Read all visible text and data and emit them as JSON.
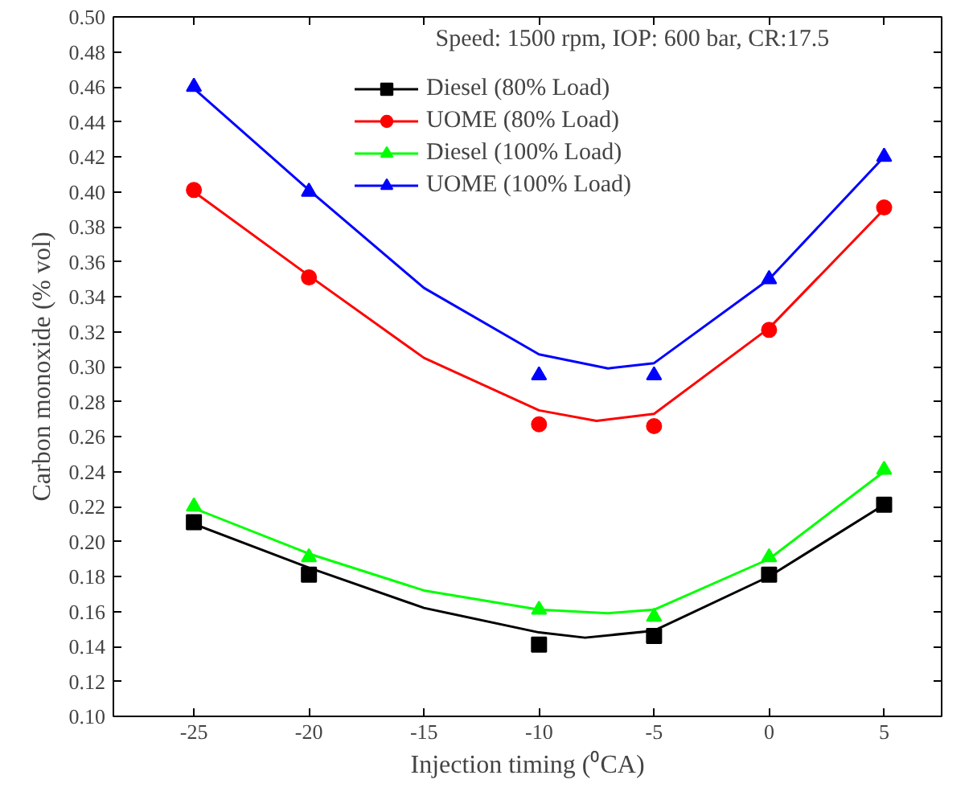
{
  "chart_data": {
    "type": "scatter",
    "xlabel": "Injection timing (⁰CA)",
    "ylabel": "Carbon monoxide (% vol)",
    "annotations": [
      "Speed: 1500 rpm, IOP: 600 bar, CR:17.5"
    ],
    "x": [
      -25,
      -20,
      -10,
      -5,
      0,
      5
    ],
    "series": [
      {
        "name": "Diesel (80% Load)",
        "color": "#000000",
        "marker": "square",
        "values": [
          0.211,
          0.181,
          0.141,
          0.146,
          0.181,
          0.221
        ]
      },
      {
        "name": "UOME (80% Load)",
        "color": "#ff0000",
        "marker": "circle",
        "values": [
          0.401,
          0.351,
          0.267,
          0.266,
          0.321,
          0.391
        ]
      },
      {
        "name": "Diesel (100% Load)",
        "color": "#00ff00",
        "marker": "triangle",
        "values": [
          0.22,
          0.191,
          0.161,
          0.157,
          0.191,
          0.241
        ]
      },
      {
        "name": "UOME (100% Load)",
        "color": "#0000ff",
        "marker": "triangle",
        "values": [
          0.46,
          0.4,
          0.295,
          0.295,
          0.35,
          0.42
        ]
      },
      {
        "type": "line",
        "color": "#000000",
        "x": [
          -25,
          -20,
          -15,
          -10,
          -8,
          -5,
          0,
          5
        ],
        "values": [
          0.21,
          0.185,
          0.162,
          0.148,
          0.145,
          0.149,
          0.18,
          0.221
        ]
      },
      {
        "type": "line",
        "color": "#ff0000",
        "x": [
          -25,
          -20,
          -15,
          -10,
          -7.5,
          -5,
          0,
          5
        ],
        "values": [
          0.4,
          0.352,
          0.305,
          0.275,
          0.269,
          0.273,
          0.322,
          0.39
        ]
      },
      {
        "type": "line",
        "color": "#00ff00",
        "x": [
          -25,
          -20,
          -15,
          -10,
          -7,
          -5,
          0,
          5
        ],
        "values": [
          0.219,
          0.193,
          0.172,
          0.161,
          0.159,
          0.161,
          0.19,
          0.24
        ]
      },
      {
        "type": "line",
        "color": "#0000ff",
        "x": [
          -25,
          -20,
          -15,
          -10,
          -7,
          -5,
          0,
          5
        ],
        "values": [
          0.459,
          0.401,
          0.345,
          0.307,
          0.299,
          0.302,
          0.35,
          0.42
        ]
      }
    ],
    "xlim": [
      -28.5,
      7.5
    ],
    "xticks": [
      -25,
      -20,
      -15,
      -10,
      -5,
      0,
      5
    ],
    "ylim": [
      0.1,
      0.5
    ],
    "yticks": [
      {
        "value": 0.1,
        "label": "0.10"
      },
      {
        "value": 0.12,
        "label": "0.12"
      },
      {
        "value": 0.14,
        "label": "0.14"
      },
      {
        "value": 0.16,
        "label": "0.16"
      },
      {
        "value": 0.18,
        "label": "0.18"
      },
      {
        "value": 0.2,
        "label": "0.20"
      },
      {
        "value": 0.22,
        "label": "0.22"
      },
      {
        "value": 0.24,
        "label": "0.24"
      },
      {
        "value": 0.26,
        "label": "0.26"
      },
      {
        "value": 0.28,
        "label": "0.28"
      },
      {
        "value": 0.3,
        "label": "0.30"
      },
      {
        "value": 0.32,
        "label": "0.32"
      },
      {
        "value": 0.34,
        "label": "0.34"
      },
      {
        "value": 0.36,
        "label": "0.36"
      },
      {
        "value": 0.38,
        "label": "0.38"
      },
      {
        "value": 0.4,
        "label": "0.40"
      },
      {
        "value": 0.42,
        "label": "0.42"
      },
      {
        "value": 0.44,
        "label": "0.44"
      },
      {
        "value": 0.46,
        "label": "0.46"
      },
      {
        "value": 0.48,
        "label": "0.48"
      },
      {
        "value": 0.5,
        "label": "0.50"
      }
    ],
    "grid": false,
    "legend": "top"
  }
}
